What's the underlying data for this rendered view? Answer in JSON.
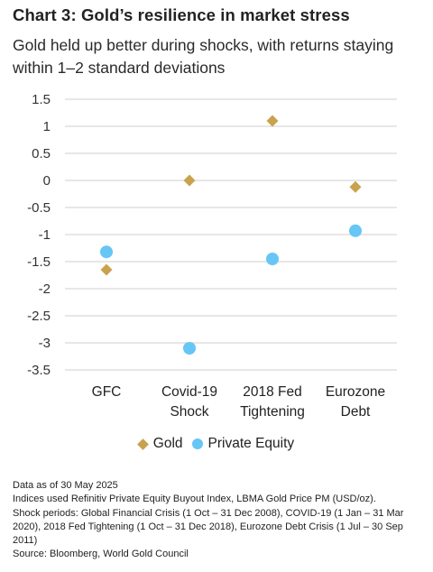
{
  "title": "Chart 3:  Gold’s resilience in market stress",
  "subtitle": "Gold held up better during shocks, with returns staying within 1–2 standard deviations",
  "chart_data": {
    "type": "scatter",
    "title": "Chart 3:  Gold’s resilience in market stress",
    "subtitle": "Gold held up better during shocks, with returns staying within 1–2 standard deviations",
    "categories": [
      [
        "GFC"
      ],
      [
        "Covid-19",
        "Shock"
      ],
      [
        "2018 Fed",
        "Tightening"
      ],
      [
        "Eurozone",
        "Debt"
      ]
    ],
    "yticks": [
      "1.5",
      "1",
      "0.5",
      "0",
      "-0.5",
      "-1",
      "-1.5",
      "-2",
      "-2.5",
      "-3",
      "-3.5"
    ],
    "ylim": [
      -3.5,
      1.5
    ],
    "grid": true,
    "legend_position": "bottom",
    "series": [
      {
        "name": "Gold",
        "marker": "diamond",
        "color": "#c9a24e",
        "values": [
          -1.65,
          0.0,
          1.1,
          -0.12
        ]
      },
      {
        "name": "Private Equity",
        "marker": "circle",
        "color": "#66c6f5",
        "values": [
          -1.32,
          -3.1,
          -1.45,
          -0.93
        ]
      }
    ]
  },
  "notes": [
    "Data as of 30 May 2025",
    "Indices used Refinitiv Private Equity Buyout Index, LBMA Gold Price PM (USD/oz).",
    "Shock periods: Global Financial Crisis (1 Oct – 31 Dec 2008), COVID-19 (1 Jan – 31 Mar 2020), 2018 Fed Tightening (1 Oct – 31 Dec 2018), Eurozone Debt Crisis (1 Jul – 30 Sep 2011)",
    "Source: Bloomberg, World Gold Council"
  ]
}
